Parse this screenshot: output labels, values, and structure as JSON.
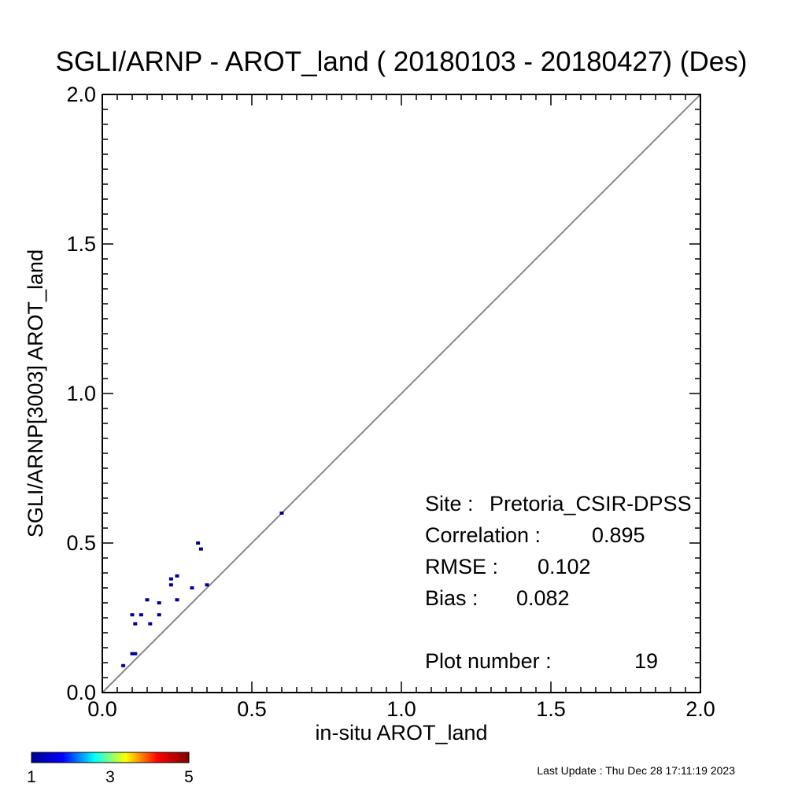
{
  "chart_data": {
    "type": "scatter",
    "title": "SGLI/ARNP - AROT_land ( 20180103 - 20180427) (Des)",
    "xlabel": "in-situ AROT_land",
    "ylabel": "SGLI/ARNP[3003]    AROT_land",
    "xlim": [
      0.0,
      2.0
    ],
    "ylim": [
      0.0,
      2.0
    ],
    "xticks": [
      "0.0",
      "0.5",
      "1.0",
      "1.5",
      "2.0"
    ],
    "yticks": [
      "0.0",
      "0.5",
      "1.0",
      "1.5",
      "2.0"
    ],
    "xtick_values": [
      0.0,
      0.5,
      1.0,
      1.5,
      2.0
    ],
    "ytick_values": [
      0.0,
      0.5,
      1.0,
      1.5,
      2.0
    ],
    "grid": false,
    "reference_line": "y = x",
    "points": [
      {
        "x": 0.07,
        "y": 0.09
      },
      {
        "x": 0.1,
        "y": 0.13
      },
      {
        "x": 0.11,
        "y": 0.13
      },
      {
        "x": 0.1,
        "y": 0.26
      },
      {
        "x": 0.11,
        "y": 0.23
      },
      {
        "x": 0.13,
        "y": 0.26
      },
      {
        "x": 0.15,
        "y": 0.31
      },
      {
        "x": 0.16,
        "y": 0.23
      },
      {
        "x": 0.19,
        "y": 0.26
      },
      {
        "x": 0.19,
        "y": 0.3
      },
      {
        "x": 0.23,
        "y": 0.36
      },
      {
        "x": 0.23,
        "y": 0.38
      },
      {
        "x": 0.25,
        "y": 0.31
      },
      {
        "x": 0.25,
        "y": 0.39
      },
      {
        "x": 0.3,
        "y": 0.35
      },
      {
        "x": 0.32,
        "y": 0.5
      },
      {
        "x": 0.33,
        "y": 0.48
      },
      {
        "x": 0.35,
        "y": 0.36
      },
      {
        "x": 0.6,
        "y": 0.6
      }
    ],
    "point_color": "#00008f",
    "stats": {
      "site_label": "Site :",
      "site": "Pretoria_CSIR-DPSS",
      "correlation_label": "Correlation :",
      "correlation": "0.895",
      "rmse_label": "RMSE :",
      "rmse": "0.102",
      "bias_label": "Bias :",
      "bias": "0.082",
      "plot_number_label": "Plot number :",
      "plot_number": "19"
    },
    "colorbar": {
      "min_label": "1",
      "mid_label": "3",
      "max_label": "5",
      "colors": [
        "#00008f",
        "#0000ff",
        "#00ffff",
        "#ffff00",
        "#ff0000",
        "#800000"
      ]
    }
  },
  "footer": {
    "last_update": "Last Update : Thu Dec 28 17:11:19 2023"
  }
}
